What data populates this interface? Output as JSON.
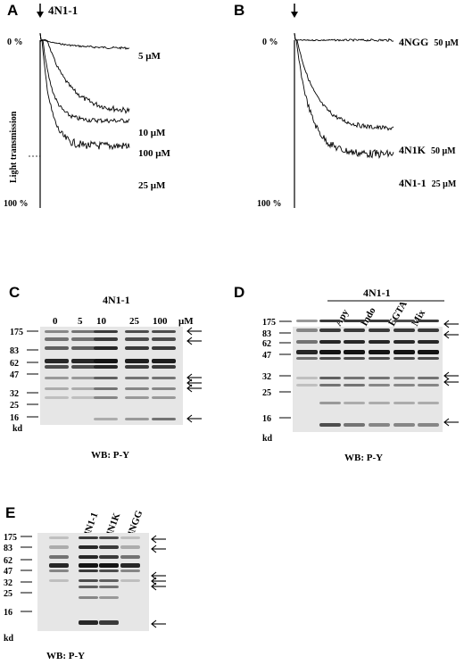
{
  "panels": {
    "A": {
      "letter": "A",
      "agonist": "4N1-1",
      "y_top": "0 %",
      "y_bottom": "100 %",
      "ylabel": "Light transmission",
      "traces": [
        {
          "label": "5 μM",
          "final_transmission_pct": 5
        },
        {
          "label": "10 μM",
          "final_transmission_pct": 43
        },
        {
          "label": "100 μM",
          "final_transmission_pct": 48
        },
        {
          "label": "25 μM",
          "final_transmission_pct": 63
        }
      ]
    },
    "B": {
      "letter": "B",
      "y_top": "0 %",
      "y_bottom": "100 %",
      "traces": [
        {
          "name": "4NGG",
          "conc": "50 μM",
          "final_transmission_pct": 0
        },
        {
          "name": "4N1K",
          "conc": "50 μM",
          "final_transmission_pct": 53
        },
        {
          "name": "4N1-1",
          "conc": "25 μM",
          "final_transmission_pct": 68
        }
      ]
    },
    "C": {
      "letter": "C",
      "title": "4N1-1",
      "lane_labels": [
        "0",
        "5",
        "10",
        "25",
        "100"
      ],
      "unit": "μM",
      "markers": [
        "175",
        "83",
        "62",
        "47",
        "32",
        "25",
        "16"
      ],
      "kd": "kd",
      "caption": "WB: P-Y"
    },
    "D": {
      "letter": "D",
      "title": "4N1-1",
      "lane_labels": [
        "–",
        "–",
        "Apy",
        "Indo",
        "EGTA",
        "Mix"
      ],
      "markers": [
        "175",
        "83",
        "62",
        "47",
        "32",
        "25",
        "16"
      ],
      "kd": "kd",
      "caption": "WB: P-Y"
    },
    "E": {
      "letter": "E",
      "lane_labels": [
        "–",
        "4N1-1",
        "4N1K",
        "4NGG"
      ],
      "markers": [
        "175",
        "83",
        "62",
        "47",
        "32",
        "25",
        "16"
      ],
      "kd": "kd",
      "caption": "WB: P-Y"
    }
  }
}
